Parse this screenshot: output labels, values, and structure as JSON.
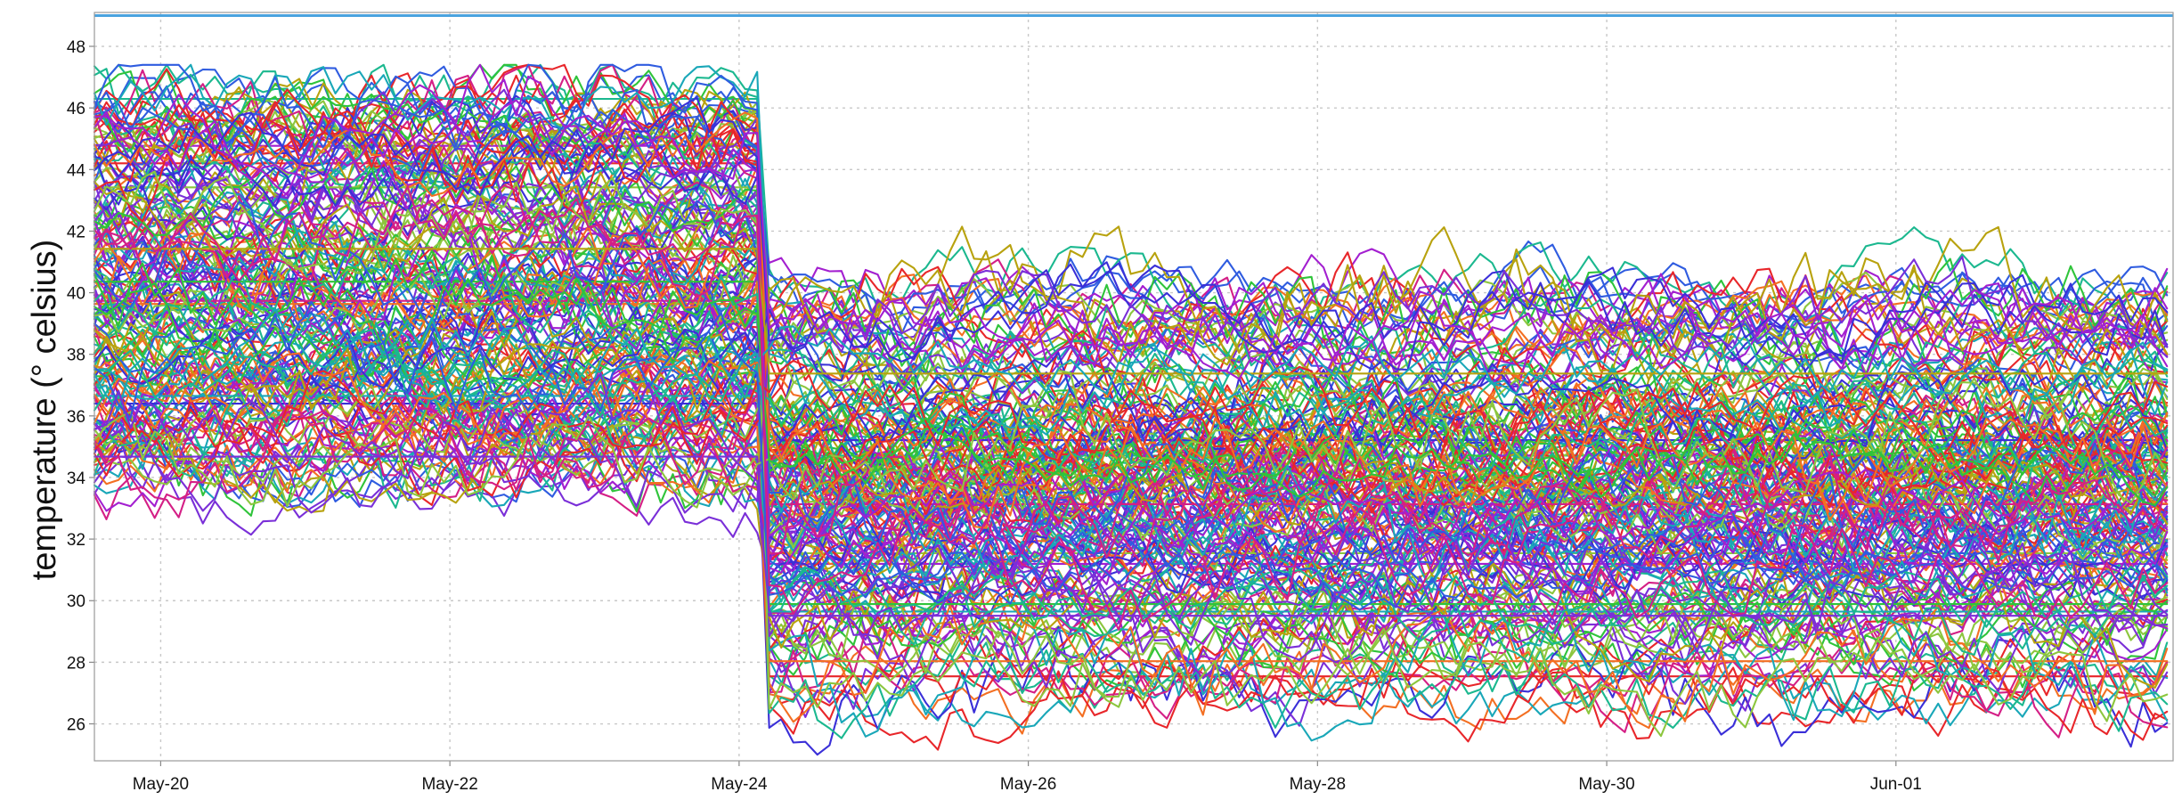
{
  "chart_data": {
    "type": "line",
    "title": "",
    "xlabel": "",
    "ylabel": "temperature (° celsius)",
    "xlim": [
      "2014-05-19T13:00",
      "2014-06-02T22:00"
    ],
    "ylim": [
      24.8,
      49.1
    ],
    "grid": true,
    "legend": "none",
    "x_ticks": [
      "May-20",
      "May-22",
      "May-24",
      "May-26",
      "May-28",
      "May-30",
      "Jun-01"
    ],
    "y_ticks": [
      26,
      28,
      30,
      32,
      34,
      36,
      38,
      40,
      42,
      44,
      46,
      48
    ],
    "reference_line": {
      "y": 49,
      "color": "#4aa3df"
    },
    "series_count": 200,
    "palette": [
      "#e8262a",
      "#f36f22",
      "#b8a20e",
      "#8cc63e",
      "#2fc43a",
      "#1bb88f",
      "#19a7b8",
      "#2f5ce0",
      "#3a2fd8",
      "#7a2fd8",
      "#a31fd0",
      "#d41f86"
    ],
    "level_shift_date": "2014-05-24T04:00",
    "series": [
      {
        "period1_base": 46.0,
        "period2_base": 40.0,
        "color": "#2f5ce0"
      },
      {
        "period1_base": 46.4,
        "period2_base": 40.3,
        "color": "#1bb88f"
      },
      {
        "period1_base": 45.0,
        "period2_base": 39.6,
        "color": "#d41f86"
      },
      {
        "period1_base": 44.0,
        "period2_base": 39.0,
        "color": "#f36f22"
      },
      {
        "period1_base": 43.2,
        "period2_base": 38.5,
        "color": "#7a2fd8"
      },
      {
        "period1_base": 42.0,
        "period2_base": 38.0,
        "color": "#8cc63e"
      },
      {
        "period1_base": 41.0,
        "period2_base": 37.5,
        "color": "#e8262a"
      },
      {
        "period1_base": 40.0,
        "period2_base": 36.8,
        "color": "#19a7b8"
      },
      {
        "period1_base": 39.0,
        "period2_base": 36.0,
        "color": "#3a2fd8"
      },
      {
        "period1_base": 38.2,
        "period2_base": 35.4,
        "color": "#b8a20e"
      },
      {
        "period1_base": 37.0,
        "period2_base": 34.8,
        "color": "#2fc43a"
      },
      {
        "period1_base": 36.0,
        "period2_base": 34.0,
        "color": "#a31fd0"
      },
      {
        "period1_base": 35.0,
        "period2_base": 33.2,
        "color": "#e8262a"
      },
      {
        "period1_base": 34.0,
        "period2_base": 32.5,
        "color": "#2f5ce0"
      },
      {
        "period1_base": 33.0,
        "period2_base": 31.0,
        "color": "#7a2fd8"
      },
      {
        "period1_base": 40.5,
        "period2_base": 29.0,
        "color": "#8cc63e"
      },
      {
        "period1_base": 38.6,
        "period2_base": 28.0,
        "color": "#1bb88f"
      },
      {
        "period1_base": 37.4,
        "period2_base": 27.2,
        "color": "#f36f22"
      },
      {
        "period1_base": 36.4,
        "period2_base": 26.8,
        "color": "#e8262a"
      },
      {
        "period1_base": 39.4,
        "period2_base": 30.2,
        "color": "#19a7b8"
      }
    ]
  }
}
